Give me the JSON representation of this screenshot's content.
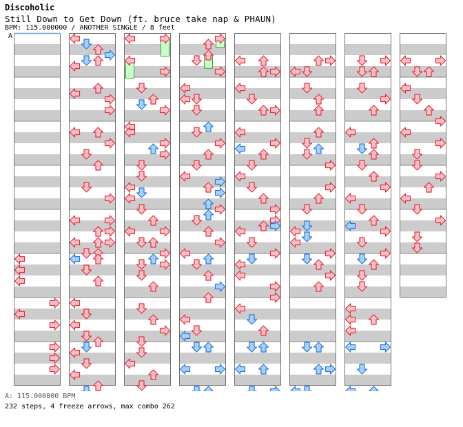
{
  "header": {
    "group": "Discoholic",
    "song": "Still Down to Get Down (ft. bruce take nap & PHAUN)",
    "meta": "BPM: 115.000000 / ANOTHER SINGLE / 8 feet",
    "bpm_marker": "A"
  },
  "footer": {
    "bpm_line": "A: 115.000000 BPM",
    "stats": "232 steps, 4 freeze arrows, max combo 262"
  },
  "colors": {
    "red_fill": "#ffc0c8",
    "red_stroke": "#e03040",
    "blue_fill": "#a8d0ff",
    "blue_stroke": "#2a78d8",
    "green_fill": "#c8ffc8",
    "green_stroke": "#40a040",
    "stripe": "#cccccc",
    "border": "#707070"
  },
  "chart_data": {
    "type": "table",
    "lanes": [
      "left",
      "down",
      "up",
      "right"
    ],
    "columns": 8,
    "measures_per_column": 8,
    "notes": [
      {
        "c": 0,
        "t": 5.0,
        "l": 0
      },
      {
        "c": 0,
        "t": 5.25,
        "l": 0
      },
      {
        "c": 0,
        "t": 5.5,
        "l": 0
      },
      {
        "c": 0,
        "t": 6.0,
        "l": 3
      },
      {
        "c": 0,
        "t": 6.25,
        "l": 0
      },
      {
        "c": 0,
        "t": 6.5,
        "l": 3
      },
      {
        "c": 0,
        "t": 7.0,
        "l": 3
      },
      {
        "c": 0,
        "t": 7.25,
        "l": 3
      },
      {
        "c": 0,
        "t": 7.5,
        "l": 3
      },
      {
        "c": 1,
        "t": 0.0,
        "l": 0
      },
      {
        "c": 1,
        "t": 0.125,
        "l": 1,
        "b": 1
      },
      {
        "c": 1,
        "t": 0.25,
        "l": 2
      },
      {
        "c": 1,
        "t": 0.375,
        "l": 3,
        "b": 1
      },
      {
        "c": 1,
        "t": 0.5,
        "l": 1,
        "b": 1
      },
      {
        "c": 1,
        "t": 0.625,
        "l": 0
      },
      {
        "c": 1,
        "t": 0.5,
        "l": 2
      },
      {
        "c": 1,
        "t": 1.25,
        "l": 0
      },
      {
        "c": 1,
        "t": 1.125,
        "l": 2
      },
      {
        "c": 1,
        "t": 1.375,
        "l": 3
      },
      {
        "c": 1,
        "t": 1.625,
        "l": 3
      },
      {
        "c": 1,
        "t": 2.125,
        "l": 0
      },
      {
        "c": 1,
        "t": 2.125,
        "l": 2
      },
      {
        "c": 1,
        "t": 2.375,
        "l": 3
      },
      {
        "c": 1,
        "t": 2.625,
        "l": 1
      },
      {
        "c": 1,
        "t": 2.875,
        "l": 2
      },
      {
        "c": 1,
        "t": 3.375,
        "l": 1
      },
      {
        "c": 1,
        "t": 3.625,
        "l": 3
      },
      {
        "c": 1,
        "t": 4.125,
        "l": 0
      },
      {
        "c": 1,
        "t": 4.125,
        "l": 3
      },
      {
        "c": 1,
        "t": 4.375,
        "l": 2
      },
      {
        "c": 1,
        "t": 4.375,
        "l": 3
      },
      {
        "c": 1,
        "t": 4.625,
        "l": 0
      },
      {
        "c": 1,
        "t": 4.625,
        "l": 2
      },
      {
        "c": 1,
        "t": 4.625,
        "l": 3
      },
      {
        "c": 1,
        "t": 4.875,
        "l": 1
      },
      {
        "c": 1,
        "t": 4.875,
        "l": 2
      },
      {
        "c": 1,
        "t": 5.0,
        "l": 0,
        "b": 1
      },
      {
        "c": 1,
        "t": 5.0,
        "l": 2
      },
      {
        "c": 1,
        "t": 5.25,
        "l": 1
      },
      {
        "c": 1,
        "t": 5.5,
        "l": 2
      },
      {
        "c": 1,
        "t": 6.0,
        "l": 0
      },
      {
        "c": 1,
        "t": 6.25,
        "l": 1
      },
      {
        "c": 1,
        "t": 6.5,
        "l": 0
      },
      {
        "c": 1,
        "t": 6.75,
        "l": 1
      },
      {
        "c": 1,
        "t": 6.875,
        "l": 2
      },
      {
        "c": 1,
        "t": 7.0,
        "l": 1,
        "b": 1
      },
      {
        "c": 1,
        "t": 7.125,
        "l": 0
      },
      {
        "c": 1,
        "t": 7.375,
        "l": 1
      },
      {
        "c": 1,
        "t": 7.625,
        "l": 0
      },
      {
        "c": 1,
        "t": 7.875,
        "l": 2
      },
      {
        "c": 1,
        "t": 8.0,
        "l": 1,
        "b": 1
      },
      {
        "c": 2,
        "t": 0.0,
        "l": 0
      },
      {
        "c": 2,
        "t": 0.0,
        "l": 3,
        "f": 0.4
      },
      {
        "c": 2,
        "t": 0.5,
        "l": 0,
        "f": 0.4
      },
      {
        "c": 2,
        "t": 0.75,
        "l": 3
      },
      {
        "c": 2,
        "t": 1.125,
        "l": 1
      },
      {
        "c": 2,
        "t": 1.5,
        "l": 1,
        "b": 1
      },
      {
        "c": 2,
        "t": 1.375,
        "l": 2
      },
      {
        "c": 2,
        "t": 1.625,
        "l": 3
      },
      {
        "c": 2,
        "t": 2.0,
        "l": 0
      },
      {
        "c": 2,
        "t": 2.125,
        "l": 0
      },
      {
        "c": 2,
        "t": 2.375,
        "l": 3
      },
      {
        "c": 2,
        "t": 2.5,
        "l": 2,
        "b": 1
      },
      {
        "c": 2,
        "t": 2.625,
        "l": 3
      },
      {
        "c": 2,
        "t": 2.875,
        "l": 1
      },
      {
        "c": 2,
        "t": 3.125,
        "l": 1
      },
      {
        "c": 2,
        "t": 3.375,
        "l": 0
      },
      {
        "c": 2,
        "t": 3.5,
        "l": 1,
        "b": 1
      },
      {
        "c": 2,
        "t": 3.625,
        "l": 0
      },
      {
        "c": 2,
        "t": 3.875,
        "l": 1
      },
      {
        "c": 2,
        "t": 4.125,
        "l": 2
      },
      {
        "c": 2,
        "t": 4.375,
        "l": 0
      },
      {
        "c": 2,
        "t": 4.375,
        "l": 3
      },
      {
        "c": 2,
        "t": 4.625,
        "l": 1
      },
      {
        "c": 2,
        "t": 4.625,
        "l": 2
      },
      {
        "c": 2,
        "t": 4.875,
        "l": 3
      },
      {
        "c": 2,
        "t": 5.0,
        "l": 2,
        "b": 1
      },
      {
        "c": 2,
        "t": 5.125,
        "l": 1
      },
      {
        "c": 2,
        "t": 5.125,
        "l": 3
      },
      {
        "c": 2,
        "t": 5.375,
        "l": 1
      },
      {
        "c": 2,
        "t": 5.625,
        "l": 2
      },
      {
        "c": 2,
        "t": 6.125,
        "l": 1
      },
      {
        "c": 2,
        "t": 6.375,
        "l": 2
      },
      {
        "c": 2,
        "t": 6.625,
        "l": 3
      },
      {
        "c": 2,
        "t": 6.875,
        "l": 1
      },
      {
        "c": 2,
        "t": 7.125,
        "l": 1
      },
      {
        "c": 2,
        "t": 7.375,
        "l": 0
      },
      {
        "c": 2,
        "t": 7.625,
        "l": 2
      },
      {
        "c": 2,
        "t": 7.875,
        "l": 1
      },
      {
        "c": 3,
        "t": 0.0,
        "l": 3,
        "f": 0.2
      },
      {
        "c": 3,
        "t": 0.125,
        "l": 2
      },
      {
        "c": 3,
        "t": 0.5,
        "l": 1
      },
      {
        "c": 3,
        "t": 0.375,
        "l": 2,
        "f": 0.3
      },
      {
        "c": 3,
        "t": 0.75,
        "l": 3
      },
      {
        "c": 3,
        "t": 1.125,
        "l": 0
      },
      {
        "c": 3,
        "t": 1.375,
        "l": 0
      },
      {
        "c": 3,
        "t": 1.375,
        "l": 1
      },
      {
        "c": 3,
        "t": 1.625,
        "l": 1
      },
      {
        "c": 3,
        "t": 2.0,
        "l": 2,
        "b": 1
      },
      {
        "c": 3,
        "t": 2.125,
        "l": 1
      },
      {
        "c": 3,
        "t": 2.375,
        "l": 3
      },
      {
        "c": 3,
        "t": 2.625,
        "l": 2
      },
      {
        "c": 3,
        "t": 2.875,
        "l": 1
      },
      {
        "c": 3,
        "t": 3.125,
        "l": 0
      },
      {
        "c": 3,
        "t": 3.25,
        "l": 3,
        "b": 1
      },
      {
        "c": 3,
        "t": 3.375,
        "l": 2
      },
      {
        "c": 3,
        "t": 3.5,
        "l": 3,
        "b": 1
      },
      {
        "c": 3,
        "t": 3.75,
        "l": 2,
        "b": 1
      },
      {
        "c": 3,
        "t": 3.875,
        "l": 3
      },
      {
        "c": 3,
        "t": 4.0,
        "l": 2,
        "b": 1
      },
      {
        "c": 3,
        "t": 4.125,
        "l": 1
      },
      {
        "c": 3,
        "t": 4.375,
        "l": 2
      },
      {
        "c": 3,
        "t": 4.625,
        "l": 3
      },
      {
        "c": 3,
        "t": 4.875,
        "l": 0
      },
      {
        "c": 3,
        "t": 5.0,
        "l": 2,
        "b": 1
      },
      {
        "c": 3,
        "t": 5.125,
        "l": 1
      },
      {
        "c": 3,
        "t": 5.375,
        "l": 2
      },
      {
        "c": 3,
        "t": 5.625,
        "l": 3,
        "b": 1
      },
      {
        "c": 3,
        "t": 5.875,
        "l": 2
      },
      {
        "c": 3,
        "t": 6.375,
        "l": 0
      },
      {
        "c": 3,
        "t": 6.625,
        "l": 1
      },
      {
        "c": 3,
        "t": 6.75,
        "l": 0,
        "b": 1
      },
      {
        "c": 3,
        "t": 7.0,
        "l": 1,
        "b": 1
      },
      {
        "c": 3,
        "t": 7.0,
        "l": 2,
        "b": 1
      },
      {
        "c": 3,
        "t": 7.5,
        "l": 0,
        "b": 1
      },
      {
        "c": 3,
        "t": 7.5,
        "l": 3,
        "b": 1
      },
      {
        "c": 3,
        "t": 8.0,
        "l": 1,
        "b": 1
      },
      {
        "c": 3,
        "t": 8.0,
        "l": 2,
        "b": 1
      },
      {
        "c": 4,
        "t": 0.5,
        "l": 0
      },
      {
        "c": 4,
        "t": 0.5,
        "l": 2
      },
      {
        "c": 4,
        "t": 0.75,
        "l": 2
      },
      {
        "c": 4,
        "t": 0.75,
        "l": 3
      },
      {
        "c": 4,
        "t": 1.125,
        "l": 0
      },
      {
        "c": 4,
        "t": 1.375,
        "l": 1
      },
      {
        "c": 4,
        "t": 1.625,
        "l": 2
      },
      {
        "c": 4,
        "t": 1.625,
        "l": 3
      },
      {
        "c": 4,
        "t": 2.125,
        "l": 0
      },
      {
        "c": 4,
        "t": 2.375,
        "l": 3
      },
      {
        "c": 4,
        "t": 2.5,
        "l": 0,
        "b": 1
      },
      {
        "c": 4,
        "t": 2.625,
        "l": 2
      },
      {
        "c": 4,
        "t": 2.875,
        "l": 1
      },
      {
        "c": 4,
        "t": 3.125,
        "l": 0
      },
      {
        "c": 4,
        "t": 3.375,
        "l": 1
      },
      {
        "c": 4,
        "t": 3.625,
        "l": 2
      },
      {
        "c": 4,
        "t": 3.875,
        "l": 3
      },
      {
        "c": 4,
        "t": 4.125,
        "l": 3
      },
      {
        "c": 4,
        "t": 4.25,
        "l": 2
      },
      {
        "c": 4,
        "t": 4.25,
        "l": 3,
        "b": 1
      },
      {
        "c": 4,
        "t": 4.375,
        "l": 0
      },
      {
        "c": 4,
        "t": 4.625,
        "l": 1
      },
      {
        "c": 4,
        "t": 4.875,
        "l": 3
      },
      {
        "c": 4,
        "t": 5.0,
        "l": 1,
        "b": 1
      },
      {
        "c": 4,
        "t": 5.125,
        "l": 0
      },
      {
        "c": 4,
        "t": 5.375,
        "l": 0
      },
      {
        "c": 4,
        "t": 5.625,
        "l": 3
      },
      {
        "c": 4,
        "t": 5.875,
        "l": 3
      },
      {
        "c": 4,
        "t": 6.125,
        "l": 0
      },
      {
        "c": 4,
        "t": 6.375,
        "l": 1,
        "b": 1
      },
      {
        "c": 4,
        "t": 6.625,
        "l": 2
      },
      {
        "c": 4,
        "t": 7.0,
        "l": 1,
        "b": 1
      },
      {
        "c": 4,
        "t": 7.0,
        "l": 2,
        "b": 1
      },
      {
        "c": 4,
        "t": 7.5,
        "l": 0,
        "b": 1
      },
      {
        "c": 4,
        "t": 7.5,
        "l": 2,
        "b": 1
      },
      {
        "c": 4,
        "t": 8.0,
        "l": 1,
        "b": 1
      },
      {
        "c": 4,
        "t": 8.0,
        "l": 3,
        "b": 1
      },
      {
        "c": 5,
        "t": 0.5,
        "l": 2
      },
      {
        "c": 5,
        "t": 0.5,
        "l": 3
      },
      {
        "c": 5,
        "t": 0.75,
        "l": 0
      },
      {
        "c": 5,
        "t": 0.75,
        "l": 1
      },
      {
        "c": 5,
        "t": 1.125,
        "l": 1
      },
      {
        "c": 5,
        "t": 1.375,
        "l": 2
      },
      {
        "c": 5,
        "t": 1.625,
        "l": 2
      },
      {
        "c": 5,
        "t": 2.125,
        "l": 2
      },
      {
        "c": 5,
        "t": 2.375,
        "l": 1
      },
      {
        "c": 5,
        "t": 2.5,
        "l": 2,
        "b": 1
      },
      {
        "c": 5,
        "t": 2.625,
        "l": 1
      },
      {
        "c": 5,
        "t": 2.875,
        "l": 3
      },
      {
        "c": 5,
        "t": 3.375,
        "l": 3
      },
      {
        "c": 5,
        "t": 3.625,
        "l": 2
      },
      {
        "c": 5,
        "t": 3.875,
        "l": 1
      },
      {
        "c": 5,
        "t": 4.25,
        "l": 1,
        "b": 1
      },
      {
        "c": 5,
        "t": 4.375,
        "l": 0
      },
      {
        "c": 5,
        "t": 4.5,
        "l": 1,
        "b": 1
      },
      {
        "c": 5,
        "t": 4.625,
        "l": 0
      },
      {
        "c": 5,
        "t": 4.875,
        "l": 3
      },
      {
        "c": 5,
        "t": 5.0,
        "l": 1,
        "b": 1
      },
      {
        "c": 5,
        "t": 5.125,
        "l": 2
      },
      {
        "c": 5,
        "t": 5.375,
        "l": 3
      },
      {
        "c": 5,
        "t": 5.625,
        "l": 2
      },
      {
        "c": 5,
        "t": 7.0,
        "l": 1,
        "b": 1
      },
      {
        "c": 5,
        "t": 7.0,
        "l": 2,
        "b": 1
      },
      {
        "c": 5,
        "t": 7.5,
        "l": 2,
        "b": 1
      },
      {
        "c": 5,
        "t": 7.5,
        "l": 3,
        "b": 1
      },
      {
        "c": 5,
        "t": 8.0,
        "l": 0,
        "b": 1
      },
      {
        "c": 5,
        "t": 8.0,
        "l": 1,
        "b": 1
      },
      {
        "c": 6,
        "t": 0.5,
        "l": 1
      },
      {
        "c": 6,
        "t": 0.5,
        "l": 3
      },
      {
        "c": 6,
        "t": 0.75,
        "l": 1
      },
      {
        "c": 6,
        "t": 0.75,
        "l": 2
      },
      {
        "c": 6,
        "t": 1.125,
        "l": 1
      },
      {
        "c": 6,
        "t": 1.375,
        "l": 3
      },
      {
        "c": 6,
        "t": 1.625,
        "l": 2
      },
      {
        "c": 6,
        "t": 2.125,
        "l": 0
      },
      {
        "c": 6,
        "t": 2.375,
        "l": 2
      },
      {
        "c": 6,
        "t": 2.5,
        "l": 1,
        "b": 1
      },
      {
        "c": 6,
        "t": 2.625,
        "l": 2
      },
      {
        "c": 6,
        "t": 2.875,
        "l": 1
      },
      {
        "c": 6,
        "t": 3.125,
        "l": 2
      },
      {
        "c": 6,
        "t": 3.375,
        "l": 3
      },
      {
        "c": 6,
        "t": 3.625,
        "l": 0
      },
      {
        "c": 6,
        "t": 3.875,
        "l": 1
      },
      {
        "c": 6,
        "t": 4.125,
        "l": 2
      },
      {
        "c": 6,
        "t": 4.25,
        "l": 0,
        "b": 1
      },
      {
        "c": 6,
        "t": 4.375,
        "l": 3
      },
      {
        "c": 6,
        "t": 4.625,
        "l": 1
      },
      {
        "c": 6,
        "t": 4.875,
        "l": 3
      },
      {
        "c": 6,
        "t": 5.0,
        "l": 1,
        "b": 1
      },
      {
        "c": 6,
        "t": 5.125,
        "l": 2
      },
      {
        "c": 6,
        "t": 5.375,
        "l": 1
      },
      {
        "c": 6,
        "t": 5.625,
        "l": 1
      },
      {
        "c": 6,
        "t": 6.125,
        "l": 0
      },
      {
        "c": 6,
        "t": 6.375,
        "l": 0
      },
      {
        "c": 6,
        "t": 6.625,
        "l": 0
      },
      {
        "c": 6,
        "t": 6.375,
        "l": 2
      },
      {
        "c": 6,
        "t": 7.0,
        "l": 0,
        "b": 1
      },
      {
        "c": 6,
        "t": 7.0,
        "l": 3,
        "b": 1
      },
      {
        "c": 6,
        "t": 7.5,
        "l": 1,
        "b": 1
      },
      {
        "c": 6,
        "t": 8.0,
        "l": 0,
        "b": 1
      },
      {
        "c": 6,
        "t": 8.0,
        "l": 2,
        "b": 1
      },
      {
        "c": 7,
        "t": 0.5,
        "l": 0
      },
      {
        "c": 7,
        "t": 0.5,
        "l": 3
      },
      {
        "c": 7,
        "t": 0.75,
        "l": 1
      },
      {
        "c": 7,
        "t": 0.75,
        "l": 2
      },
      {
        "c": 7,
        "t": 1.125,
        "l": 0
      },
      {
        "c": 7,
        "t": 1.375,
        "l": 1
      },
      {
        "c": 7,
        "t": 1.625,
        "l": 2
      },
      {
        "c": 7,
        "t": 1.875,
        "l": 3
      },
      {
        "c": 7,
        "t": 2.125,
        "l": 0
      },
      {
        "c": 7,
        "t": 2.375,
        "l": 3
      },
      {
        "c": 7,
        "t": 2.625,
        "l": 1
      },
      {
        "c": 7,
        "t": 2.875,
        "l": 1
      },
      {
        "c": 7,
        "t": 3.125,
        "l": 3
      },
      {
        "c": 7,
        "t": 3.375,
        "l": 2
      },
      {
        "c": 7,
        "t": 3.625,
        "l": 0
      },
      {
        "c": 7,
        "t": 3.875,
        "l": 1
      },
      {
        "c": 7,
        "t": 4.125,
        "l": 3
      },
      {
        "c": 7,
        "t": 4.5,
        "l": 1
      },
      {
        "c": 7,
        "t": 4.75,
        "l": 1
      }
    ]
  }
}
